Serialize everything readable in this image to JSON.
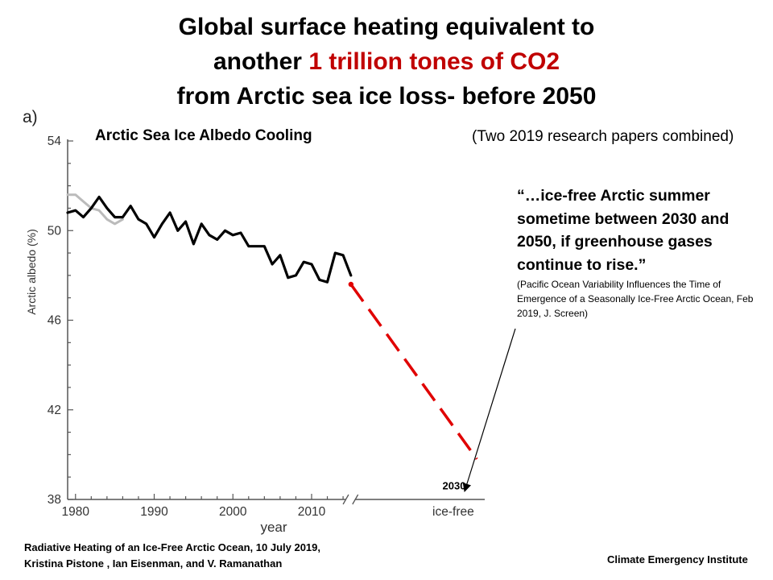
{
  "title": {
    "line1": "Global surface heating equivalent to",
    "line2_pre": "another ",
    "line2_highlight": "1 trillion tones of CO2",
    "line3": "from Arctic sea ice loss- before 2050",
    "highlight_color": "#c00000"
  },
  "note": "(Two 2019 research papers combined)",
  "quote": {
    "text": "“…ice-free Arctic summer sometime between 2030 and 2050, if greenhouse gases continue to rise.”",
    "source": "(Pacific Ocean Variability Influences the Time of Emergence of a Seasonally Ice-Free Arctic Ocean, Feb 2019, J. Screen)"
  },
  "source": {
    "line1": "Radiative Heating of an Ice-Free Arctic Ocean,  10 July 2019,",
    "line2": "Kristina  Pistone , Ian Eisenman, and  V. Ramanathan"
  },
  "credit": "Climate Emergency Institute",
  "chart_data": {
    "type": "line",
    "panel_label": "a)",
    "subtitle": "Arctic Sea Ice Albedo Cooling",
    "xlabel": "year",
    "ylabel": "Arctic albedo (%)",
    "ylim": [
      38,
      54
    ],
    "xlim": [
      1979,
      2032
    ],
    "yticks": [
      38,
      42,
      46,
      50,
      54
    ],
    "xticks": [
      {
        "value": 1980,
        "label": "1980"
      },
      {
        "value": 1990,
        "label": "1990"
      },
      {
        "value": 2000,
        "label": "2000"
      },
      {
        "value": 2010,
        "label": "2010"
      },
      {
        "value": 2028,
        "label": "ice-free"
      }
    ],
    "grid": false,
    "series": [
      {
        "color": "#000000",
        "x": [
          1979,
          1980,
          1981,
          1982,
          1983,
          1984,
          1985,
          1986,
          1987,
          1988,
          1989,
          1990,
          1991,
          1992,
          1993,
          1994,
          1995,
          1996,
          1997,
          1998,
          1999,
          2000,
          2001,
          2002,
          2003,
          2004,
          2005,
          2006,
          2007,
          2008,
          2009,
          2010,
          2011,
          2012,
          2013,
          2014,
          2015
        ],
        "values": [
          50.8,
          50.9,
          50.6,
          51.0,
          51.5,
          51.0,
          50.6,
          50.6,
          51.1,
          50.5,
          50.3,
          49.7,
          50.3,
          50.8,
          50.0,
          50.4,
          49.4,
          50.3,
          49.8,
          49.6,
          50.0,
          49.8,
          49.9,
          49.3,
          49.3,
          49.3,
          48.5,
          48.9,
          47.9,
          48.0,
          48.6,
          48.5,
          47.8,
          47.7,
          49.0,
          48.9,
          48.0
        ]
      },
      {
        "color": "#bbbbbb",
        "x": [
          1979,
          1980,
          1981,
          1982,
          1983,
          1984,
          1985,
          1986
        ],
        "values": [
          51.6,
          51.6,
          51.3,
          51.0,
          50.9,
          50.5,
          50.3,
          50.5
        ]
      },
      {
        "color": "#e00000",
        "dashed": true,
        "x": [
          2015,
          2031
        ],
        "values": [
          47.6,
          39.8
        ]
      }
    ],
    "annotations": [
      {
        "text": "2030",
        "x": 2030,
        "y": 38.3
      }
    ]
  }
}
